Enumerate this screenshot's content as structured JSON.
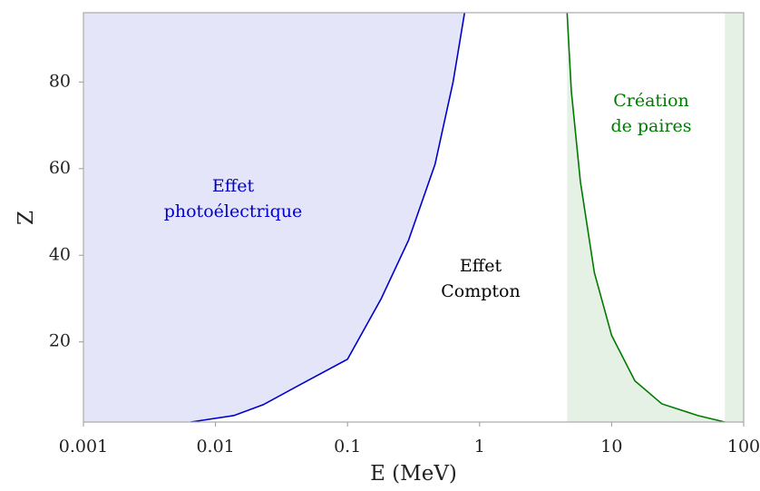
{
  "chart_data": {
    "type": "line",
    "xlabel": "E (MeV)",
    "ylabel": "Z",
    "log_x": true,
    "xlim": [
      0.001,
      100
    ],
    "ylim": [
      1.5,
      96
    ],
    "xticks": [
      0.001,
      0.01,
      0.1,
      1,
      10,
      100
    ],
    "yticks": [
      20,
      40,
      60,
      80
    ],
    "series": [
      {
        "color": "#0000cc",
        "fill": "#e5e5fa",
        "fill_side": "left",
        "x": [
          0.0065,
          0.0138,
          0.023,
          0.043,
          0.1,
          0.18,
          0.29,
          0.46,
          0.63,
          0.77
        ],
        "values": [
          1.5,
          3,
          5.5,
          10,
          16,
          30,
          43.5,
          61,
          80,
          96
        ]
      },
      {
        "color": "#007a00",
        "fill": "#e6f1e6",
        "fill_side": "right",
        "x": [
          4.6,
          4.95,
          5.8,
          7.4,
          10,
          15,
          24,
          45,
          72
        ],
        "values": [
          96,
          78,
          57,
          36,
          21.5,
          11,
          5.7,
          3,
          1.5
        ]
      }
    ],
    "annotations": [
      {
        "lines": [
          "Effet",
          "photoélectrique"
        ],
        "color": "#0000cc"
      },
      {
        "lines": [
          "Effet",
          "Compton"
        ],
        "color": "#000000"
      },
      {
        "lines": [
          "Création",
          "de paires"
        ],
        "color": "#007a00"
      }
    ]
  }
}
